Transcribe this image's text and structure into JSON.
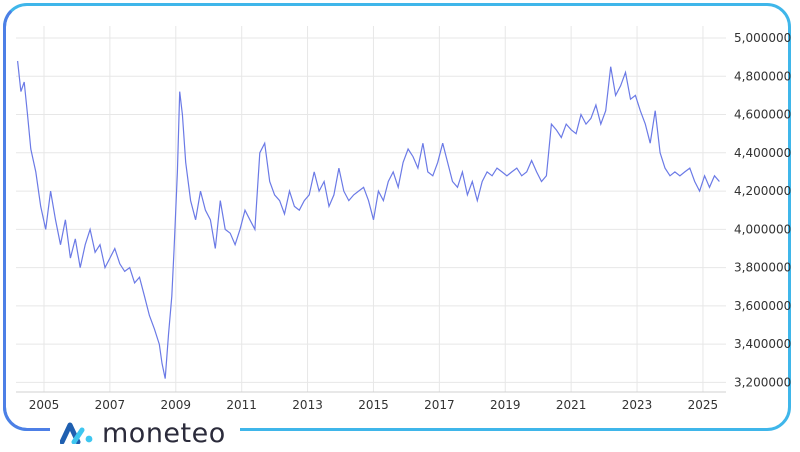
{
  "brand": {
    "name": "moneteo",
    "icon": "moneteo-logo-icon"
  },
  "colors": {
    "line": "#6b7ae6",
    "frame": "#3fb6ea",
    "frame_alt": "#4d7fe6",
    "grid": "#e7e7e7",
    "logo_dark": "#1f5fb0",
    "logo_light": "#3ec6f0"
  },
  "chart_data": {
    "type": "line",
    "title": "",
    "xlabel": "",
    "ylabel": "",
    "grid": true,
    "y_axis_side": "right",
    "xlim": [
      2004.15,
      2025.7
    ],
    "ylim": [
      3.15,
      5.0
    ],
    "y_ticks": [
      3.2,
      3.4,
      3.6,
      3.8,
      4.0,
      4.2,
      4.4,
      4.6,
      4.8,
      5.0
    ],
    "y_tick_labels": [
      "3,200000",
      "3,400000",
      "3,600000",
      "3,800000",
      "4,000000",
      "4,200000",
      "4,400000",
      "4,600000",
      "4,800000",
      "5,000000"
    ],
    "x_ticks": [
      2005,
      2007,
      2009,
      2011,
      2013,
      2015,
      2017,
      2019,
      2021,
      2023,
      2025
    ],
    "x_tick_labels": [
      "2005",
      "2007",
      "2009",
      "2011",
      "2013",
      "2015",
      "2017",
      "2019",
      "2021",
      "2023",
      "2025"
    ],
    "series": [
      {
        "x": [
          2004.2,
          2004.3,
          2004.4,
          2004.5,
          2004.6,
          2004.75,
          2004.9,
          2005.05,
          2005.2,
          2005.35,
          2005.5,
          2005.65,
          2005.8,
          2005.95,
          2006.1,
          2006.25,
          2006.4,
          2006.55,
          2006.7,
          2006.85,
          2007.0,
          2007.15,
          2007.3,
          2007.45,
          2007.6,
          2007.75,
          2007.9,
          2008.05,
          2008.2,
          2008.35,
          2008.5,
          2008.58,
          2008.68,
          2008.78,
          2008.88,
          2008.95,
          2009.05,
          2009.12,
          2009.2,
          2009.3,
          2009.45,
          2009.6,
          2009.75,
          2009.9,
          2010.05,
          2010.2,
          2010.35,
          2010.5,
          2010.65,
          2010.8,
          2010.95,
          2011.1,
          2011.25,
          2011.4,
          2011.55,
          2011.7,
          2011.85,
          2012.0,
          2012.15,
          2012.3,
          2012.45,
          2012.6,
          2012.75,
          2012.9,
          2013.05,
          2013.2,
          2013.35,
          2013.5,
          2013.65,
          2013.8,
          2013.95,
          2014.1,
          2014.25,
          2014.4,
          2014.55,
          2014.7,
          2014.85,
          2015.0,
          2015.15,
          2015.3,
          2015.45,
          2015.6,
          2015.75,
          2015.9,
          2016.05,
          2016.2,
          2016.35,
          2016.5,
          2016.65,
          2016.8,
          2016.95,
          2017.1,
          2017.25,
          2017.4,
          2017.55,
          2017.7,
          2017.85,
          2018.0,
          2018.15,
          2018.3,
          2018.45,
          2018.6,
          2018.75,
          2018.9,
          2019.05,
          2019.2,
          2019.35,
          2019.5,
          2019.65,
          2019.8,
          2019.95,
          2020.1,
          2020.25,
          2020.4,
          2020.55,
          2020.7,
          2020.85,
          2021.0,
          2021.15,
          2021.3,
          2021.45,
          2021.6,
          2021.75,
          2021.9,
          2022.05,
          2022.2,
          2022.35,
          2022.5,
          2022.65,
          2022.8,
          2022.95,
          2023.1,
          2023.25,
          2023.4,
          2023.55,
          2023.7,
          2023.85,
          2024.0,
          2024.15,
          2024.3,
          2024.45,
          2024.6,
          2024.75,
          2024.9,
          2025.05,
          2025.2,
          2025.35,
          2025.5
        ],
        "values": [
          4.88,
          4.72,
          4.77,
          4.6,
          4.42,
          4.3,
          4.12,
          4.0,
          4.2,
          4.05,
          3.92,
          4.05,
          3.85,
          3.95,
          3.8,
          3.92,
          4.0,
          3.88,
          3.92,
          3.8,
          3.85,
          3.9,
          3.82,
          3.78,
          3.8,
          3.72,
          3.75,
          3.65,
          3.55,
          3.48,
          3.4,
          3.3,
          3.22,
          3.45,
          3.65,
          3.9,
          4.3,
          4.72,
          4.6,
          4.35,
          4.15,
          4.05,
          4.2,
          4.1,
          4.05,
          3.9,
          4.15,
          4.0,
          3.98,
          3.92,
          4.0,
          4.1,
          4.05,
          4.0,
          4.4,
          4.45,
          4.25,
          4.18,
          4.15,
          4.08,
          4.2,
          4.12,
          4.1,
          4.15,
          4.18,
          4.3,
          4.2,
          4.25,
          4.12,
          4.18,
          4.32,
          4.2,
          4.15,
          4.18,
          4.2,
          4.22,
          4.15,
          4.05,
          4.2,
          4.15,
          4.25,
          4.3,
          4.22,
          4.35,
          4.42,
          4.38,
          4.32,
          4.45,
          4.3,
          4.28,
          4.35,
          4.45,
          4.35,
          4.25,
          4.22,
          4.3,
          4.18,
          4.25,
          4.15,
          4.25,
          4.3,
          4.28,
          4.32,
          4.3,
          4.28,
          4.3,
          4.32,
          4.28,
          4.3,
          4.36,
          4.3,
          4.25,
          4.28,
          4.55,
          4.52,
          4.48,
          4.55,
          4.52,
          4.5,
          4.6,
          4.55,
          4.58,
          4.65,
          4.55,
          4.62,
          4.85,
          4.7,
          4.75,
          4.82,
          4.68,
          4.7,
          4.62,
          4.55,
          4.45,
          4.62,
          4.4,
          4.32,
          4.28,
          4.3,
          4.28,
          4.3,
          4.32,
          4.25,
          4.2,
          4.28,
          4.22,
          4.28,
          4.25
        ]
      }
    ]
  }
}
